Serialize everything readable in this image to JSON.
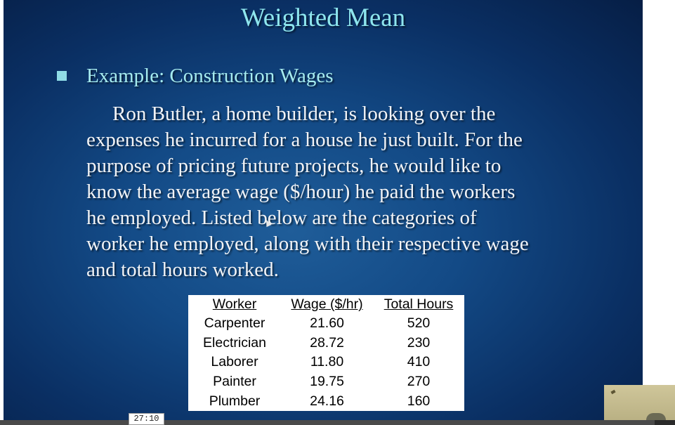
{
  "slide": {
    "title": "Weighted Mean",
    "bullet": "Example:  Construction Wages",
    "paragraph_lines": [
      "Ron Butler, a home builder, is looking over the",
      "expenses he incurred for a house he just built.  For the",
      "purpose of pricing future projects, he would like to",
      "know the average wage ($/hour) he paid the workers",
      "he employed.  Listed below are the categories of",
      "worker he employed, along with their respective wage",
      "and total hours worked."
    ],
    "bullet_color": "#8fdce6",
    "title_color": "#8ee6ee"
  },
  "table": {
    "headers": [
      "Worker",
      "Wage ($/hr)",
      "Total Hours"
    ],
    "rows": [
      [
        "Carpenter",
        "21.60",
        "520"
      ],
      [
        "Electrician",
        "28.72",
        "230"
      ],
      [
        "Laborer",
        "11.80",
        "410"
      ],
      [
        "Painter",
        "19.75",
        "270"
      ],
      [
        "Plumber",
        "24.16",
        "160"
      ]
    ]
  },
  "player": {
    "timestamp": "27:10",
    "progress_fraction": 0.97
  }
}
